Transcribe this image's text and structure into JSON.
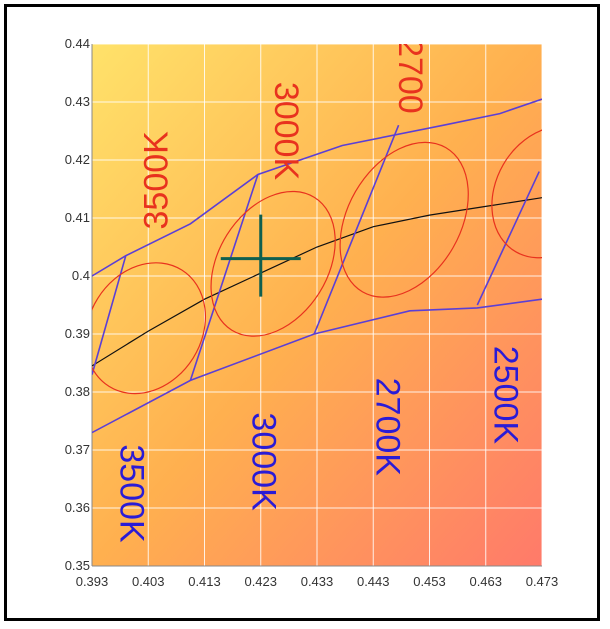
{
  "chart_data": {
    "type": "line",
    "title": "",
    "xlabel": "",
    "ylabel": "",
    "xlim": [
      0.393,
      0.473
    ],
    "ylim": [
      0.35,
      0.44
    ],
    "x_ticks": [
      "0.393",
      "0.403",
      "0.413",
      "0.423",
      "0.433",
      "0.443",
      "0.453",
      "0.463",
      "0.473"
    ],
    "y_ticks": [
      "0.35",
      "0.36",
      "0.37",
      "0.38",
      "0.39",
      "0.4",
      "0.41",
      "0.42",
      "0.43",
      "0.44"
    ],
    "grid": true,
    "background": "gradient yellow (top-left) to salmon (bottom-right)",
    "colors": {
      "envelope": "#5b3fd6",
      "locus": "#111111",
      "ellipse": "#e8321e",
      "marker": "#0f5f4f",
      "label_red": "#e8321e",
      "label_blue": "#2a1bd6"
    },
    "series": [
      {
        "type": "line",
        "role": "upper-boundary",
        "x": [
          0.393,
          0.399,
          0.4105,
          0.4225,
          0.4375,
          0.4555,
          0.4655,
          0.473
        ],
        "y": [
          0.4,
          0.4035,
          0.409,
          0.4175,
          0.4225,
          0.426,
          0.428,
          0.4305
        ]
      },
      {
        "type": "line",
        "role": "lower-boundary",
        "x": [
          0.393,
          0.4105,
          0.4325,
          0.4495,
          0.4615,
          0.473
        ],
        "y": [
          0.373,
          0.382,
          0.39,
          0.394,
          0.3945,
          0.396
        ]
      },
      {
        "type": "line",
        "role": "planckian-locus",
        "x": [
          0.393,
          0.403,
          0.413,
          0.423,
          0.433,
          0.443,
          0.453,
          0.463,
          0.473
        ],
        "y": [
          0.3845,
          0.3905,
          0.396,
          0.4005,
          0.405,
          0.4085,
          0.4105,
          0.412,
          0.4135
        ]
      },
      {
        "type": "segment",
        "x": [
          0.393,
          0.399
        ],
        "y": [
          0.383,
          0.4035
        ]
      },
      {
        "type": "segment",
        "x": [
          0.4105,
          0.4225
        ],
        "y": [
          0.382,
          0.4175
        ]
      },
      {
        "type": "segment",
        "x": [
          0.4325,
          0.4475
        ],
        "y": [
          0.39,
          0.426
        ]
      },
      {
        "type": "segment",
        "x": [
          0.4615,
          0.4725
        ],
        "y": [
          0.395,
          0.418
        ]
      },
      {
        "type": "ellipse",
        "cx": 0.4025,
        "cy": 0.391,
        "rx": 0.0122,
        "ry": 0.0097,
        "angle": 58
      },
      {
        "type": "ellipse",
        "cx": 0.4252,
        "cy": 0.4021,
        "rx": 0.0139,
        "ry": 0.0094,
        "angle": 58
      },
      {
        "type": "ellipse",
        "cx": 0.4485,
        "cy": 0.4097,
        "rx": 0.0148,
        "ry": 0.0097,
        "angle": 60
      },
      {
        "type": "ellipse",
        "cx": 0.4745,
        "cy": 0.4145,
        "rx": 0.0123,
        "ry": 0.0094,
        "angle": 60
      },
      {
        "type": "marker",
        "style": "cross",
        "x": 0.423,
        "y": 0.403
      }
    ],
    "annotations": [
      {
        "text": "3500K",
        "x": 0.4045,
        "y": 0.4165,
        "rotation": -90,
        "color": "red"
      },
      {
        "text": "3000K",
        "x": 0.4275,
        "y": 0.425,
        "rotation": 90,
        "color": "red"
      },
      {
        "text": "2700",
        "x": 0.4495,
        "y": 0.4345,
        "rotation": 90,
        "color": "red"
      },
      {
        "text": "3500K",
        "x": 0.4,
        "y": 0.3625,
        "rotation": 90,
        "color": "blue"
      },
      {
        "text": "3000K",
        "x": 0.4235,
        "y": 0.368,
        "rotation": 90,
        "color": "blue"
      },
      {
        "text": "2700K",
        "x": 0.4455,
        "y": 0.374,
        "rotation": 90,
        "color": "blue"
      },
      {
        "text": "2500K",
        "x": 0.4665,
        "y": 0.3795,
        "rotation": 90,
        "color": "blue"
      }
    ]
  }
}
